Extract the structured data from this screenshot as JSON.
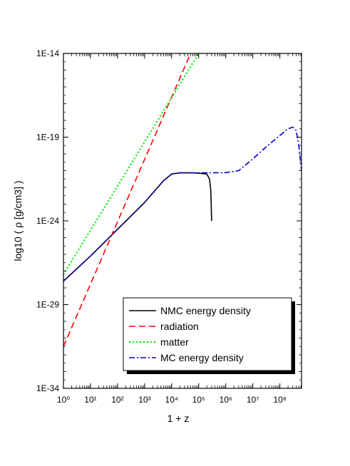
{
  "chart_data": {
    "type": "line",
    "title": "",
    "xlabel": "1 + z",
    "ylabel": "log10 ( ρ [g/cm3] )",
    "x_scale": "log",
    "xlim": [
      1,
      631000000
    ],
    "ylim": [
      -34,
      -14
    ],
    "x_tick_labels": [
      "10⁰",
      "10¹",
      "10²",
      "10³",
      "10⁴",
      "10⁵",
      "10⁶",
      "10⁷",
      "10⁸"
    ],
    "y_tick_labels": [
      "1E-34",
      "1E-29",
      "1E-24",
      "1E-19",
      "1E-14"
    ],
    "legend_position": "bottom-right",
    "grid": false,
    "series": [
      {
        "name": "NMC energy density",
        "color": "#000000",
        "dash": "solid",
        "points": [
          [
            1,
            -27.6
          ],
          [
            10,
            -26.1
          ],
          [
            100,
            -24.5
          ],
          [
            1000,
            -22.9
          ],
          [
            5000,
            -21.6
          ],
          [
            10000,
            -21.2
          ],
          [
            20000,
            -21.13
          ],
          [
            50000,
            -21.13
          ],
          [
            100000,
            -21.15
          ],
          [
            200000,
            -21.2
          ],
          [
            250000,
            -21.5
          ],
          [
            280000,
            -22.2
          ],
          [
            300000,
            -24.0
          ]
        ]
      },
      {
        "name": "radiation",
        "color": "#ff0000",
        "dash": "dashed",
        "points": [
          [
            1,
            -31.5
          ],
          [
            50000,
            -14.0
          ]
        ]
      },
      {
        "name": "matter",
        "color": "#00ee00",
        "dash": "dotted",
        "points": [
          [
            1,
            -27.2
          ],
          [
            100000,
            -14.0
          ]
        ]
      },
      {
        "name": "MC energy density",
        "color": "#0000cc",
        "dash": "dashdot",
        "points": [
          [
            1,
            -27.6
          ],
          [
            10,
            -26.1
          ],
          [
            100,
            -24.5
          ],
          [
            1000,
            -22.9
          ],
          [
            5000,
            -21.6
          ],
          [
            10000,
            -21.2
          ],
          [
            20000,
            -21.13
          ],
          [
            100000,
            -21.13
          ],
          [
            1000000,
            -21.12
          ],
          [
            3000000,
            -21.0
          ],
          [
            10000000,
            -20.3
          ],
          [
            30000000,
            -19.6
          ],
          [
            100000000,
            -18.9
          ],
          [
            200000000,
            -18.5
          ],
          [
            300000000,
            -18.4
          ],
          [
            400000000,
            -18.6
          ],
          [
            500000000,
            -19.5
          ],
          [
            631000000,
            -21.0
          ]
        ]
      }
    ]
  }
}
